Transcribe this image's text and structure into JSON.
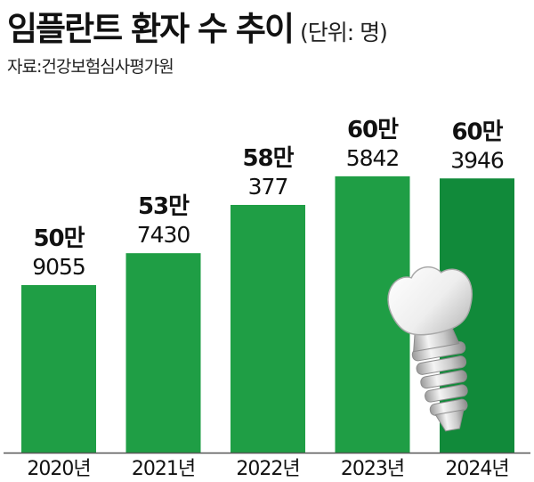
{
  "header": {
    "title": "임플란트 환자 수 추이",
    "unit": "(단위: 명)",
    "source": "자료:건강보험심사평가원"
  },
  "colors": {
    "bar": "#1f9e45",
    "bar_last": "#118a3a",
    "baseline": "#555555"
  },
  "chart_data": {
    "type": "bar",
    "categories": [
      "2020년",
      "2021년",
      "2022년",
      "2023년",
      "2024년"
    ],
    "values": [
      509055,
      537430,
      580377,
      605842,
      603946
    ],
    "data_labels": [
      [
        "50만",
        "9055"
      ],
      [
        "53만",
        "7430"
      ],
      [
        "58만",
        "377"
      ],
      [
        "60만",
        "5842"
      ],
      [
        "60만",
        "3946"
      ]
    ],
    "title": "임플란트 환자 수 추이",
    "xlabel": "",
    "ylabel": "",
    "ylim": [
      360000,
      620000
    ],
    "grid": false,
    "legend": "none",
    "decoration": "dental-implant-icon"
  }
}
